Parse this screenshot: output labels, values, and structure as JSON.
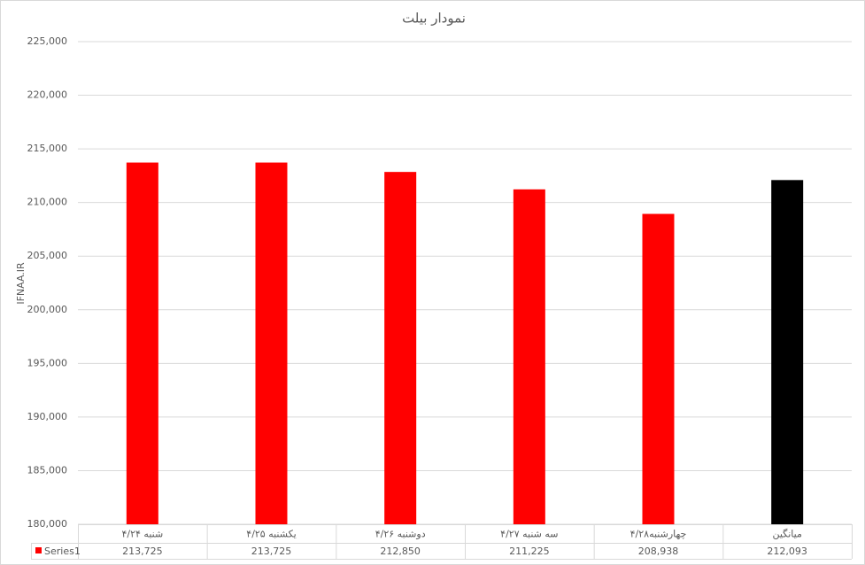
{
  "chart_data": {
    "type": "bar",
    "title": "نمودار بیلت",
    "y_label": "IFNAA.IR",
    "categories": [
      "شنبه ۴/۲۴",
      "یکشنبه ۴/۲۵",
      "دوشنبه ۴/۲۶",
      "سه شنبه ۴/۲۷",
      "چهارشنبه۴/۲۸",
      "میانگین"
    ],
    "series": [
      {
        "name": "Series1",
        "color": "#ff0000",
        "colors": [
          "#ff0000",
          "#ff0000",
          "#ff0000",
          "#ff0000",
          "#ff0000",
          "#000000"
        ],
        "values": [
          213725,
          213725,
          212850,
          211225,
          208938,
          212093
        ],
        "value_labels": [
          "213,725",
          "213,725",
          "212,850",
          "211,225",
          "208,938",
          "212,093"
        ]
      }
    ],
    "ylim": [
      180000,
      225000
    ],
    "yticks": [
      {
        "value": 180000,
        "label": "180,000"
      },
      {
        "value": 185000,
        "label": "185,000"
      },
      {
        "value": 190000,
        "label": "190,000"
      },
      {
        "value": 195000,
        "label": "195,000"
      },
      {
        "value": 200000,
        "label": "200,000"
      },
      {
        "value": 205000,
        "label": "205,000"
      },
      {
        "value": 210000,
        "label": "210,000"
      },
      {
        "value": 215000,
        "label": "215,000"
      },
      {
        "value": 220000,
        "label": "220,000"
      },
      {
        "value": 225000,
        "label": "225,000"
      }
    ],
    "grid": true
  }
}
